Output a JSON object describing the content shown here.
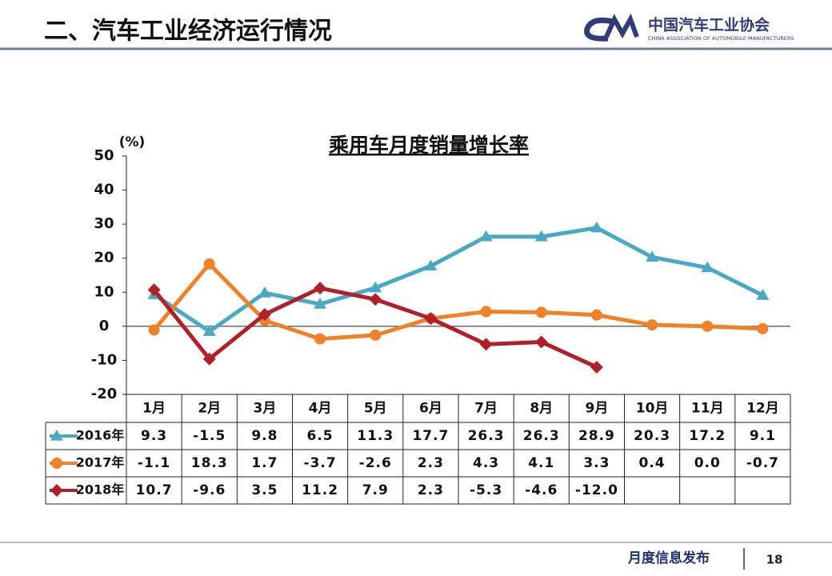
{
  "header": {
    "title": "二、汽车工业经济运行情况",
    "logo_name": "中国汽车工业协会",
    "logo_subtitle": "CHINA ASSOCIATION OF AUTOMOBILE MANUFACTURERS"
  },
  "footer": {
    "text": "月度信息发布",
    "page": "18"
  },
  "chart_data": {
    "type": "line",
    "title": "乘用车月度销量增长率",
    "y_label": "(%)",
    "categories": [
      "1月",
      "2月",
      "3月",
      "4月",
      "5月",
      "6月",
      "7月",
      "8月",
      "9月",
      "10月",
      "11月",
      "12月"
    ],
    "series": [
      {
        "name": "2016年",
        "color": "#4aa9c2",
        "marker": "triangle",
        "values": [
          9.3,
          -1.5,
          9.8,
          6.5,
          11.3,
          17.7,
          26.3,
          26.3,
          28.9,
          20.3,
          17.2,
          9.1
        ],
        "value_labels": [
          "9.3",
          "-1.5",
          "9.8",
          "6.5",
          "11.3",
          "17.7",
          "26.3",
          "26.3",
          "28.9",
          "20.3",
          "17.2",
          "9.1"
        ]
      },
      {
        "name": "2017年",
        "color": "#ef8129",
        "marker": "circle",
        "values": [
          -1.1,
          18.3,
          1.7,
          -3.7,
          -2.6,
          2.3,
          4.3,
          4.1,
          3.3,
          0.4,
          0.0,
          -0.7
        ],
        "value_labels": [
          "-1.1",
          "18.3",
          "1.7",
          "-3.7",
          "-2.6",
          "2.3",
          "4.3",
          "4.1",
          "3.3",
          "0.4",
          "0.0",
          "-0.7"
        ]
      },
      {
        "name": "2018年",
        "color": "#b0202b",
        "marker": "diamond",
        "values": [
          10.7,
          -9.6,
          3.5,
          11.2,
          7.9,
          2.3,
          -5.3,
          -4.6,
          -12.0,
          null,
          null,
          null
        ],
        "value_labels": [
          "10.7",
          "-9.6",
          "3.5",
          "11.2",
          "7.9",
          "2.3",
          "-5.3",
          "-4.6",
          "-12.0",
          null,
          null,
          null
        ]
      }
    ],
    "ylim": [
      -20,
      50
    ],
    "yticks": [
      -20,
      -10,
      0,
      10,
      20,
      30,
      40,
      50
    ],
    "grid": false
  }
}
